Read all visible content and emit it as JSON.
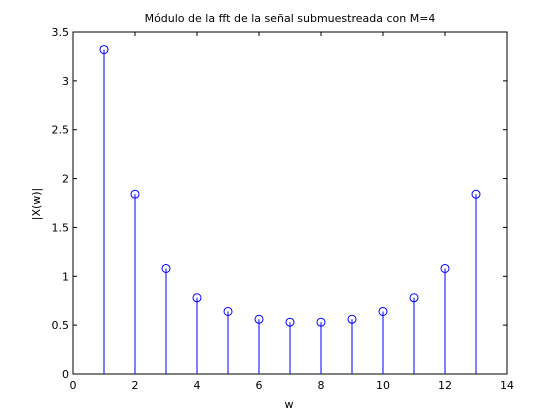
{
  "chart_data": {
    "type": "stem",
    "title": "Módulo de la fft de la señal submuestreada con M=4",
    "xlabel": "w",
    "ylabel": "|X(w)|",
    "xlim": [
      0,
      14
    ],
    "ylim": [
      0,
      3.5
    ],
    "xticks": [
      0,
      2,
      4,
      6,
      8,
      10,
      12,
      14
    ],
    "yticks": [
      0,
      0.5,
      1,
      1.5,
      2,
      2.5,
      3,
      3.5
    ],
    "xtick_labels": [
      "0",
      "2",
      "4",
      "6",
      "8",
      "10",
      "12",
      "14"
    ],
    "ytick_labels": [
      "0",
      "0.5",
      "1",
      "1.5",
      "2",
      "2.5",
      "3",
      "3.5"
    ],
    "grid": false,
    "marker": "open-circle",
    "color": "#0000ff",
    "x": [
      1,
      2,
      3,
      4,
      5,
      6,
      7,
      8,
      9,
      10,
      11,
      12,
      13
    ],
    "values": [
      3.32,
      1.84,
      1.08,
      0.78,
      0.64,
      0.56,
      0.53,
      0.53,
      0.56,
      0.64,
      0.78,
      1.08,
      1.84
    ]
  }
}
